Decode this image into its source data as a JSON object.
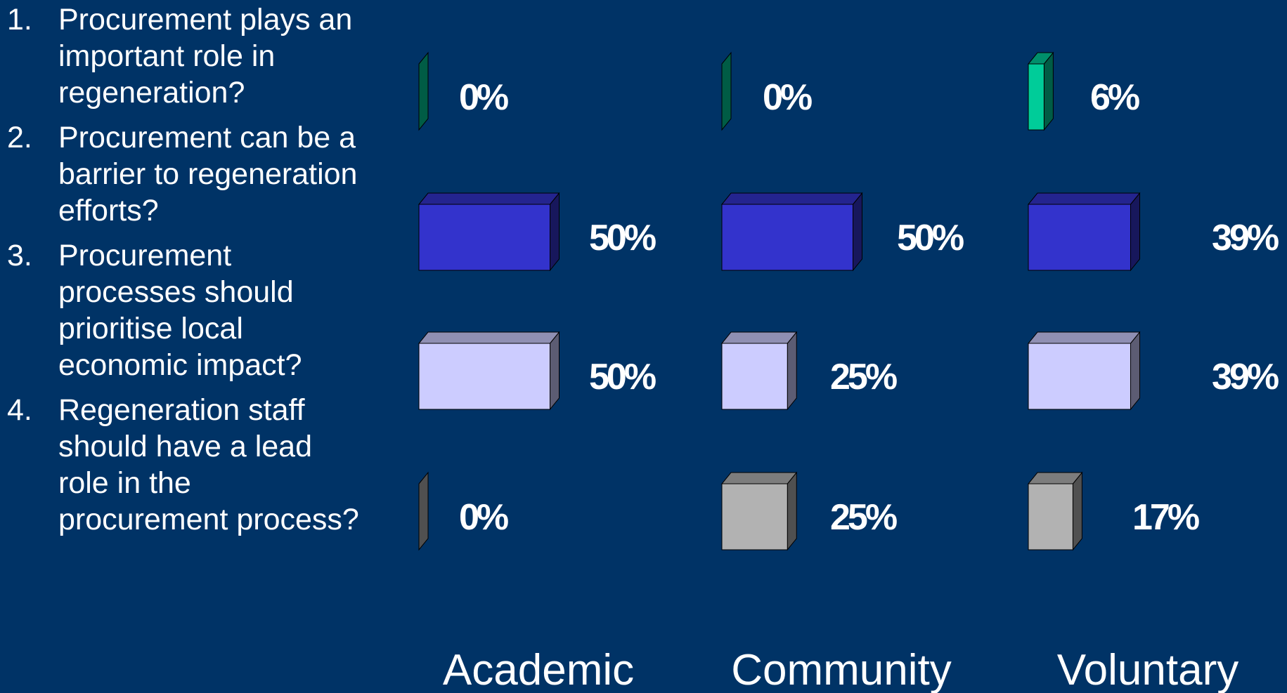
{
  "questions": [
    {
      "num": "1.",
      "text": "Procurement plays an important role in regeneration?"
    },
    {
      "num": "2.",
      "text": "Procurement can be a barrier to regeneration efforts?"
    },
    {
      "num": "3.",
      "text": "Procurement processes should prioritise local economic impact?"
    },
    {
      "num": "4.",
      "text": "Regeneration staff should have a lead role in the procurement process?"
    }
  ],
  "colors": {
    "background": "#003366",
    "q1": "#00CC99",
    "q2": "#3333CC",
    "q3": "#CCCCFF",
    "q4": "#B2B2B2"
  },
  "chart_data": {
    "type": "bar",
    "orientation": "horizontal",
    "style": "3d",
    "categories": [
      "Academic",
      "Community",
      "Voluntary"
    ],
    "series": [
      {
        "values": [
          0,
          0,
          6
        ],
        "labels": [
          "0%",
          "0%",
          "6%"
        ]
      },
      {
        "values": [
          50,
          50,
          39
        ],
        "labels": [
          "50%",
          "50%",
          "39%"
        ]
      },
      {
        "values": [
          50,
          25,
          39
        ],
        "labels": [
          "50%",
          "25%",
          "39%"
        ]
      },
      {
        "values": [
          0,
          25,
          17
        ],
        "labels": [
          "0%",
          "25%",
          "17%"
        ]
      }
    ]
  }
}
